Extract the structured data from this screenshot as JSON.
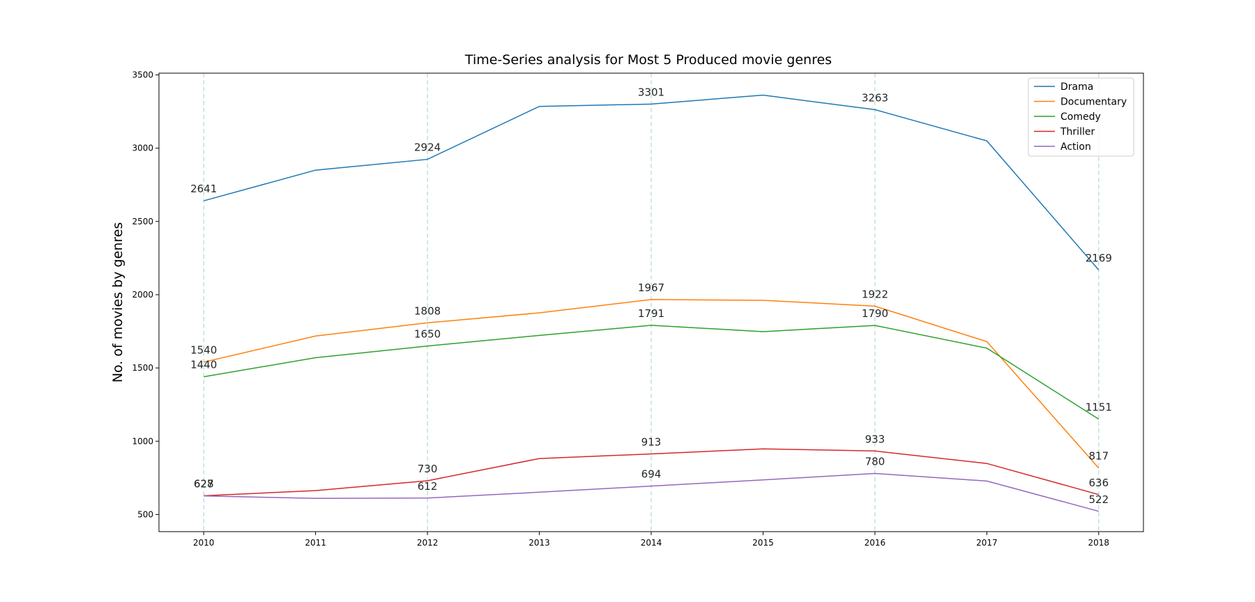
{
  "chart_data": {
    "type": "line",
    "title": "Time-Series analysis for Most 5 Produced movie genres",
    "xlabel": "",
    "ylabel": "No. of movies by genres",
    "x": [
      2010,
      2011,
      2012,
      2013,
      2014,
      2015,
      2016,
      2017,
      2018
    ],
    "xlim": [
      2009.6,
      2018.4
    ],
    "ylim": [
      383,
      3512
    ],
    "yticks": [
      500,
      1000,
      1500,
      2000,
      2500,
      3000,
      3500
    ],
    "grid": "vertical dashed lines at labeled years",
    "grid_color": "#9fd4cf",
    "legend_position": "top-right",
    "annotated_x": [
      2010,
      2012,
      2014,
      2016,
      2018
    ],
    "series": [
      {
        "name": "Drama",
        "color": "#1f77b4",
        "values": [
          2641,
          2850,
          2924,
          3285,
          3301,
          3362,
          3263,
          3050,
          2169
        ]
      },
      {
        "name": "Documentary",
        "color": "#ff7f0e",
        "values": [
          1540,
          1718,
          1808,
          1876,
          1967,
          1962,
          1922,
          1680,
          817
        ]
      },
      {
        "name": "Comedy",
        "color": "#2ca02c",
        "values": [
          1440,
          1570,
          1650,
          1722,
          1791,
          1748,
          1790,
          1635,
          1151
        ]
      },
      {
        "name": "Thriller",
        "color": "#d62728",
        "values": [
          628,
          663,
          730,
          882,
          913,
          948,
          933,
          848,
          636
        ]
      },
      {
        "name": "Action",
        "color": "#9467bd",
        "values": [
          627,
          610,
          612,
          652,
          694,
          736,
          780,
          728,
          522
        ]
      }
    ]
  }
}
